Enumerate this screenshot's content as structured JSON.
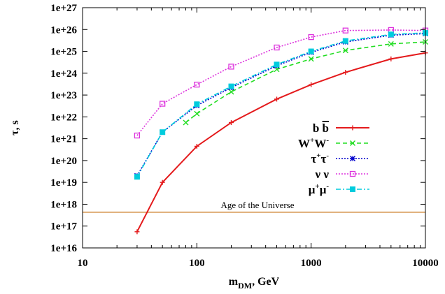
{
  "chart_data": {
    "type": "line",
    "xscale": "log",
    "yscale": "log",
    "xlim": [
      10,
      10000
    ],
    "ylim": [
      1e+16,
      1e+27
    ],
    "x_ticks": [
      10,
      100,
      1000,
      10000
    ],
    "x_tick_labels": [
      "10",
      "100",
      "1000",
      "10000"
    ],
    "y_ticks": [
      1e+16,
      1e+17,
      1e+18,
      1e+19,
      1e+20,
      1e+21,
      1e+22,
      1e+23,
      1e+24,
      1e+25,
      1e+26,
      1e+27
    ],
    "y_tick_labels": [
      "1e+16",
      "1e+17",
      "1e+18",
      "1e+19",
      "1e+20",
      "1e+21",
      "1e+22",
      "1e+23",
      "1e+24",
      "1e+25",
      "1e+26",
      "1e+27"
    ],
    "xlabel": {
      "main": "m",
      "sub": "DM",
      "rest": ", GeV"
    },
    "ylabel": "τ, s",
    "legend_position": "right",
    "grid": false,
    "series": [
      {
        "name": "b b",
        "legend": {
          "parts": [
            [
              "b",
              ""
            ],
            [
              " ",
              ""
            ],
            [
              "b",
              "bar"
            ]
          ]
        },
        "color": "#e41a1c",
        "style": "solid",
        "marker": "plus",
        "x": [
          30,
          50,
          100,
          200,
          500,
          1000,
          2000,
          5000,
          10000
        ],
        "y": [
          5.5e+16,
          1e+19,
          4.5e+20,
          5.5e+21,
          6.5e+22,
          3e+23,
          1.1e+24,
          4.5e+24,
          8.5e+24
        ]
      },
      {
        "name": "W+W-",
        "legend": {
          "parts": [
            [
              "W",
              "+"
            ],
            [
              "W",
              "-"
            ]
          ]
        },
        "color": "#22dd22",
        "style": "dashed",
        "marker": "x",
        "x": [
          80,
          100,
          200,
          500,
          1000,
          2000,
          5000,
          10000
        ],
        "y": [
          5.5e+21,
          1.4e+22,
          1.4e+23,
          1.5e+24,
          4.5e+24,
          1.1e+25,
          2.2e+25,
          2.7e+25
        ]
      },
      {
        "name": "τ+τ-",
        "legend": {
          "parts": [
            [
              "τ",
              "+"
            ],
            [
              "τ",
              "-"
            ]
          ]
        },
        "color": "#0000cc",
        "style": "dotted",
        "marker": "star",
        "x": [
          30,
          50,
          100,
          200,
          500,
          1000,
          2000,
          5000,
          10000
        ],
        "y": [
          2e+19,
          2e+21,
          3.3e+22,
          2.2e+23,
          2.2e+24,
          9e+24,
          2.7e+25,
          5.5e+25,
          6.5e+25
        ]
      },
      {
        "name": "ν ν",
        "legend": {
          "parts": [
            [
              "ν",
              ""
            ],
            [
              " ",
              ""
            ],
            [
              "ν",
              ""
            ]
          ]
        },
        "color": "#dd33dd",
        "style": "dotted",
        "marker": "square",
        "x": [
          30,
          50,
          100,
          200,
          500,
          1000,
          2000,
          5000,
          10000
        ],
        "y": [
          1.4e+21,
          4e+22,
          3e+23,
          2e+24,
          1.5e+25,
          4.5e+25,
          9e+25,
          9.5e+25,
          9e+25
        ]
      },
      {
        "name": "μ+μ-",
        "legend": {
          "parts": [
            [
              "μ",
              "+"
            ],
            [
              "μ",
              "-"
            ]
          ]
        },
        "color": "#00ccdd",
        "style": "dashdot",
        "marker": "filledsquare",
        "x": [
          30,
          50,
          100,
          200,
          500,
          1000,
          2000,
          5000,
          10000
        ],
        "y": [
          1.8e+19,
          2e+21,
          3.8e+22,
          2.5e+23,
          2.5e+24,
          1e+25,
          3e+25,
          6e+25,
          7e+25
        ]
      }
    ],
    "reference_line": {
      "label": "Age of the Universe",
      "y": 4.3e+17,
      "color": "#d08a3a"
    }
  }
}
